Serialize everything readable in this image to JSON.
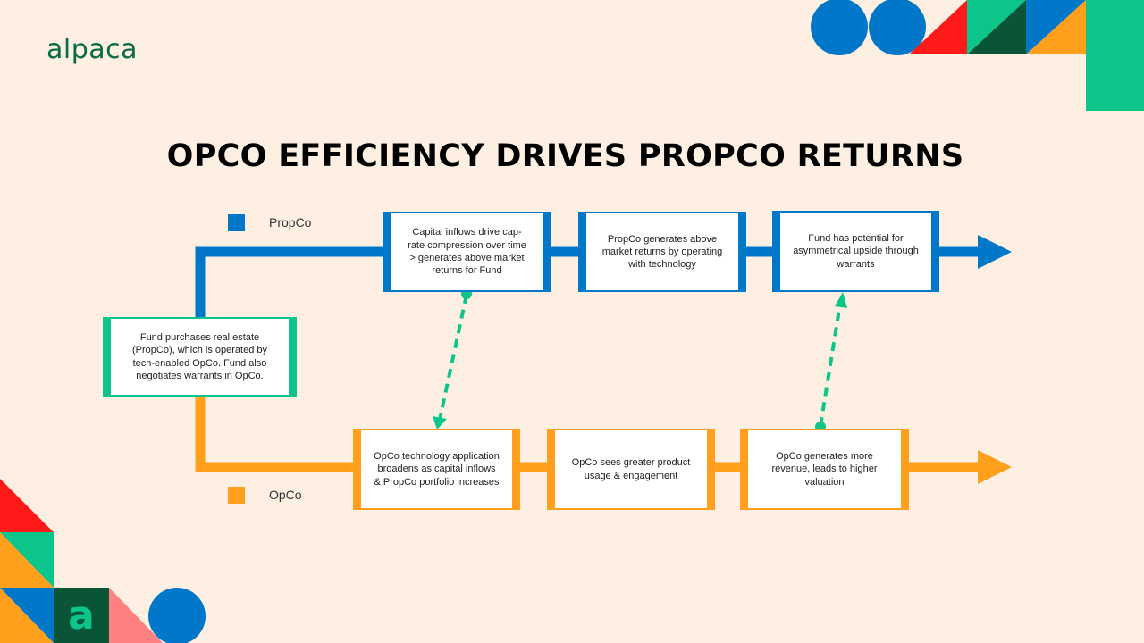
{
  "brand": {
    "logo_text": "alpaca",
    "app_icon_letter": "a"
  },
  "title": "OPCO EFFICIENCY DRIVES PROPCO RETURNS",
  "legend": {
    "propco": {
      "label": "PropCo",
      "color": "#0077c8"
    },
    "opco": {
      "label": "OpCo",
      "color": "#ff9f1c"
    }
  },
  "nodes": {
    "start": "Fund purchases real estate (PropCo), which is operated by tech-enabled OpCo. Fund also negotiates warrants in OpCo.",
    "propco": [
      "Capital inflows drive cap-rate compression over time > generates above market returns for Fund",
      "PropCo generates above market returns by operating with technology",
      "Fund has potential for asymmetrical upside through warrants"
    ],
    "opco": [
      "OpCo technology application broadens as capital inflows & PropCo portfolio increases",
      "OpCo sees greater product usage & engagement",
      "OpCo generates more revenue, leads to higher valuation"
    ]
  },
  "colors": {
    "background": "#fdf0e3",
    "propco": "#0077c8",
    "opco": "#ff9f1c",
    "link": "#0cc58a",
    "brand_green": "#0a6b45",
    "red": "#ff1a1a",
    "pink": "#ff8080"
  }
}
